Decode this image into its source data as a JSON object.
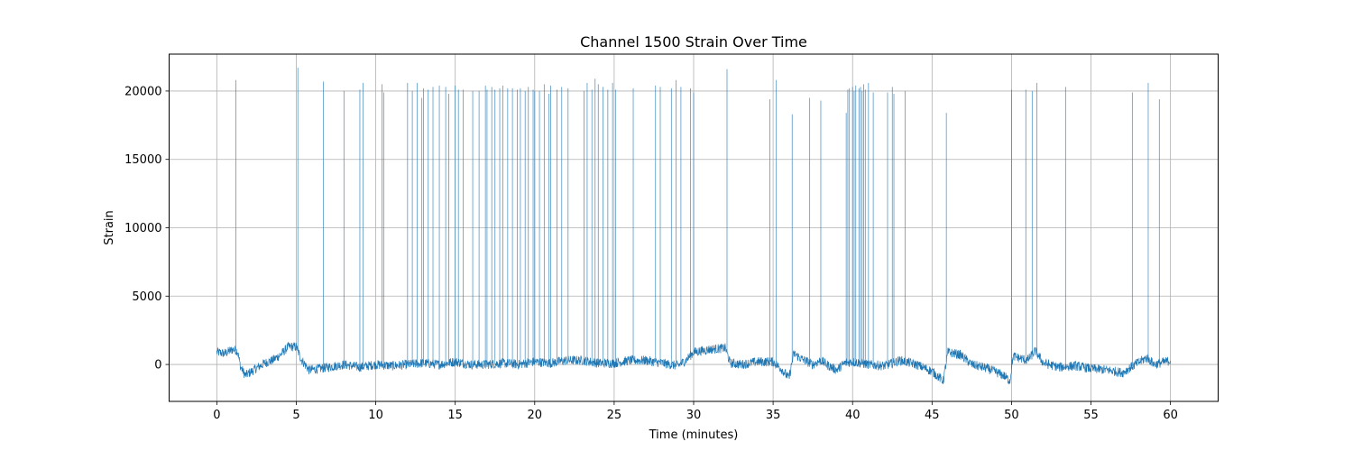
{
  "chart_data": {
    "type": "line",
    "title": "Channel 1500 Strain Over Time",
    "xlabel": "Time (minutes)",
    "ylabel": "Strain",
    "xlim": [
      -3.0,
      63.0
    ],
    "ylim": [
      -2700,
      22700
    ],
    "xticks": [
      0,
      5,
      10,
      15,
      20,
      25,
      30,
      35,
      40,
      45,
      50,
      55,
      60
    ],
    "yticks": [
      0,
      5000,
      10000,
      15000,
      20000
    ],
    "grid": true,
    "line_color": "#1f77b4",
    "series": [
      {
        "values_note": "",
        "baseline": [
          [
            0.0,
            900
          ],
          [
            0.5,
            800
          ],
          [
            1.0,
            1100
          ],
          [
            1.3,
            1000
          ],
          [
            1.5,
            -200
          ],
          [
            1.8,
            -800
          ],
          [
            2.2,
            -500
          ],
          [
            3.0,
            100
          ],
          [
            3.5,
            300
          ],
          [
            4.0,
            700
          ],
          [
            4.5,
            1300
          ],
          [
            5.0,
            1300
          ],
          [
            5.3,
            400
          ],
          [
            5.8,
            -400
          ],
          [
            6.5,
            -300
          ],
          [
            7.0,
            -200
          ],
          [
            8.0,
            0
          ],
          [
            9.0,
            -200
          ],
          [
            10.0,
            0
          ],
          [
            11.0,
            -100
          ],
          [
            12.0,
            0
          ],
          [
            13.0,
            100
          ],
          [
            14.0,
            0
          ],
          [
            15.0,
            200
          ],
          [
            16.0,
            0
          ],
          [
            17.0,
            0
          ],
          [
            18.0,
            100
          ],
          [
            19.0,
            0
          ],
          [
            20.0,
            200
          ],
          [
            21.0,
            100
          ],
          [
            22.0,
            300
          ],
          [
            23.0,
            300
          ],
          [
            24.0,
            100
          ],
          [
            25.0,
            100
          ],
          [
            26.0,
            300
          ],
          [
            27.0,
            300
          ],
          [
            28.0,
            100
          ],
          [
            29.0,
            -100
          ],
          [
            29.5,
            300
          ],
          [
            30.0,
            900
          ],
          [
            31.0,
            1100
          ],
          [
            32.0,
            1200
          ],
          [
            32.3,
            100
          ],
          [
            33.0,
            0
          ],
          [
            34.0,
            200
          ],
          [
            35.0,
            200
          ],
          [
            35.5,
            -300
          ],
          [
            36.0,
            -1000
          ],
          [
            36.3,
            800
          ],
          [
            36.8,
            400
          ],
          [
            37.5,
            0
          ],
          [
            38.0,
            300
          ],
          [
            38.5,
            -100
          ],
          [
            39.0,
            -400
          ],
          [
            39.5,
            100
          ],
          [
            40.0,
            200
          ],
          [
            41.0,
            0
          ],
          [
            42.0,
            -100
          ],
          [
            43.0,
            300
          ],
          [
            44.0,
            0
          ],
          [
            45.0,
            -500
          ],
          [
            45.7,
            -1200
          ],
          [
            46.0,
            900
          ],
          [
            46.8,
            700
          ],
          [
            47.5,
            0
          ],
          [
            48.5,
            -300
          ],
          [
            49.5,
            -800
          ],
          [
            49.9,
            -1200
          ],
          [
            50.1,
            600
          ],
          [
            51.0,
            300
          ],
          [
            51.5,
            1000
          ],
          [
            52.0,
            100
          ],
          [
            53.0,
            -200
          ],
          [
            54.0,
            -100
          ],
          [
            55.0,
            -300
          ],
          [
            56.0,
            -400
          ],
          [
            57.0,
            -600
          ],
          [
            57.5,
            -200
          ],
          [
            58.5,
            500
          ],
          [
            59.0,
            0
          ],
          [
            60.0,
            300
          ]
        ],
        "spikes": [
          [
            1.2,
            20800
          ],
          [
            5.1,
            21700
          ],
          [
            6.7,
            20700
          ],
          [
            8.0,
            20000
          ],
          [
            9.0,
            20100
          ],
          [
            9.2,
            20600
          ],
          [
            10.4,
            20500
          ],
          [
            10.5,
            19900
          ],
          [
            12.0,
            20600
          ],
          [
            12.3,
            20000
          ],
          [
            12.6,
            20600
          ],
          [
            12.9,
            19500
          ],
          [
            13.0,
            20200
          ],
          [
            13.3,
            20100
          ],
          [
            13.6,
            20300
          ],
          [
            14.0,
            20400
          ],
          [
            14.4,
            20300
          ],
          [
            14.6,
            19800
          ],
          [
            15.0,
            20400
          ],
          [
            15.2,
            20100
          ],
          [
            15.5,
            20100
          ],
          [
            16.1,
            20000
          ],
          [
            16.5,
            20000
          ],
          [
            16.9,
            20400
          ],
          [
            17.0,
            20100
          ],
          [
            17.3,
            20300
          ],
          [
            17.5,
            20100
          ],
          [
            17.8,
            20200
          ],
          [
            18.0,
            20400
          ],
          [
            18.3,
            20200
          ],
          [
            18.6,
            20200
          ],
          [
            18.9,
            20100
          ],
          [
            19.1,
            20200
          ],
          [
            19.4,
            20000
          ],
          [
            19.6,
            20300
          ],
          [
            19.9,
            20100
          ],
          [
            20.0,
            20000
          ],
          [
            20.3,
            20000
          ],
          [
            20.6,
            20500
          ],
          [
            20.9,
            19800
          ],
          [
            21.0,
            20400
          ],
          [
            21.4,
            20100
          ],
          [
            21.7,
            20300
          ],
          [
            22.1,
            20200
          ],
          [
            23.1,
            20000
          ],
          [
            23.3,
            20600
          ],
          [
            23.6,
            20100
          ],
          [
            23.8,
            20900
          ],
          [
            24.0,
            20500
          ],
          [
            24.3,
            20300
          ],
          [
            24.6,
            20100
          ],
          [
            24.9,
            20600
          ],
          [
            25.1,
            20100
          ],
          [
            26.2,
            20200
          ],
          [
            27.6,
            20400
          ],
          [
            27.9,
            20300
          ],
          [
            28.6,
            20200
          ],
          [
            28.9,
            20800
          ],
          [
            29.2,
            20300
          ],
          [
            29.8,
            20200
          ],
          [
            30.0,
            19900
          ],
          [
            32.1,
            21600
          ],
          [
            34.8,
            19400
          ],
          [
            35.2,
            20800
          ],
          [
            36.2,
            18300
          ],
          [
            37.3,
            19500
          ],
          [
            38.0,
            19300
          ],
          [
            39.6,
            18400
          ],
          [
            39.7,
            20100
          ],
          [
            39.8,
            20200
          ],
          [
            40.0,
            20300
          ],
          [
            40.1,
            20000
          ],
          [
            40.2,
            20400
          ],
          [
            40.4,
            20200
          ],
          [
            40.5,
            20300
          ],
          [
            40.6,
            20000
          ],
          [
            40.7,
            20500
          ],
          [
            40.8,
            20100
          ],
          [
            41.0,
            20600
          ],
          [
            41.3,
            19900
          ],
          [
            42.2,
            19900
          ],
          [
            42.5,
            20300
          ],
          [
            42.6,
            19800
          ],
          [
            43.3,
            20000
          ],
          [
            45.9,
            18400
          ],
          [
            50.0,
            20100
          ],
          [
            50.9,
            20100
          ],
          [
            51.3,
            20000
          ],
          [
            51.6,
            20600
          ],
          [
            53.4,
            20300
          ],
          [
            57.6,
            19900
          ],
          [
            58.6,
            20600
          ],
          [
            59.3,
            19400
          ]
        ]
      }
    ]
  }
}
